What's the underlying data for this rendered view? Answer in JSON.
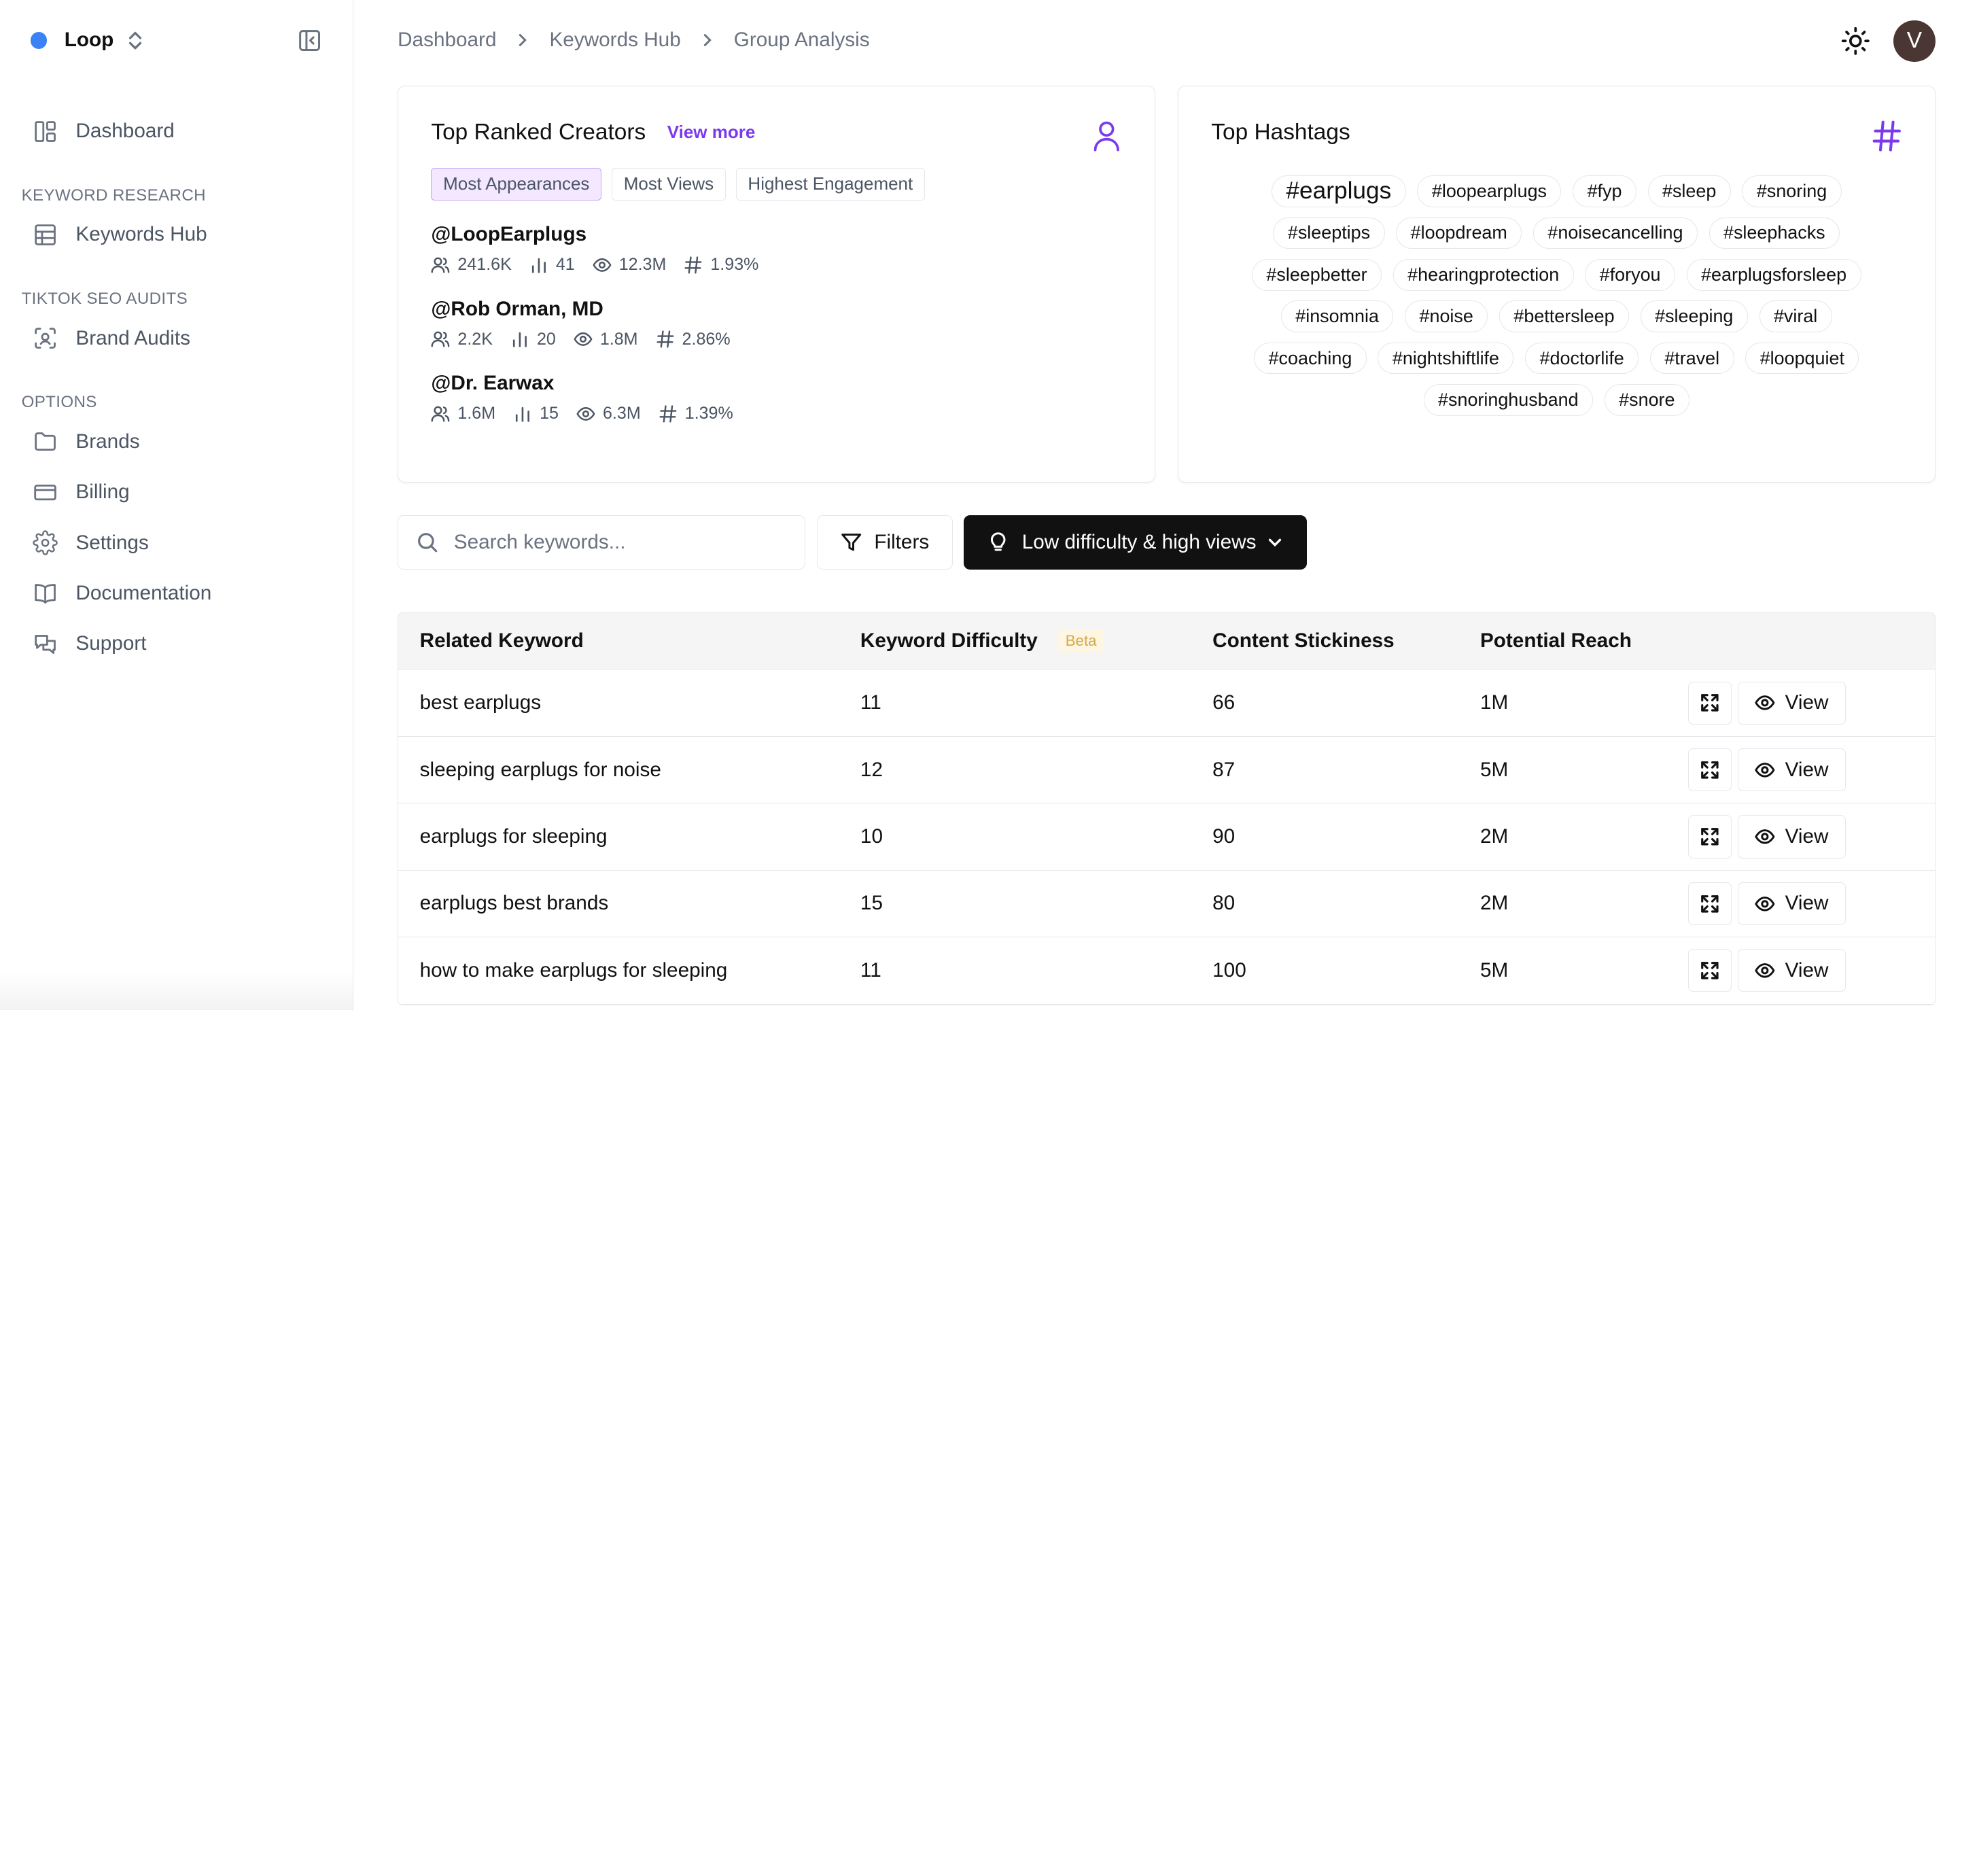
{
  "brand": {
    "name": "Loop",
    "dot_color": "#3b82f6"
  },
  "sidebar": {
    "dashboard": "Dashboard",
    "sections": {
      "keyword_research": "KEYWORD RESEARCH",
      "tiktok_seo_audits": "TIKTOK SEO AUDITS",
      "options": "OPTIONS"
    },
    "items": {
      "keywords_hub": "Keywords Hub",
      "brand_audits": "Brand Audits",
      "brands": "Brands",
      "billing": "Billing",
      "settings": "Settings",
      "documentation": "Documentation",
      "support": "Support"
    }
  },
  "breadcrumb": [
    "Dashboard",
    "Keywords Hub",
    "Group Analysis"
  ],
  "user": {
    "initial": "V"
  },
  "creators_card": {
    "title": "Top Ranked Creators",
    "view_more": "View more",
    "tabs": [
      "Most Appearances",
      "Most Views",
      "Highest Engagement"
    ],
    "active_tab": "Most Appearances",
    "creators": [
      {
        "handle": "@LoopEarplugs",
        "followers": "241.6K",
        "appearances": "41",
        "views": "12.3M",
        "engagement": "1.93%"
      },
      {
        "handle": "@Rob Orman, MD",
        "followers": "2.2K",
        "appearances": "20",
        "views": "1.8M",
        "engagement": "2.86%"
      },
      {
        "handle": "@Dr. Earwax",
        "followers": "1.6M",
        "appearances": "15",
        "views": "6.3M",
        "engagement": "1.39%"
      }
    ]
  },
  "hashtags_card": {
    "title": "Top Hashtags",
    "tags": [
      "#earplugs",
      "#loopearplugs",
      "#fyp",
      "#sleep",
      "#snoring",
      "#sleeptips",
      "#loopdream",
      "#noisecancelling",
      "#sleephacks",
      "#sleepbetter",
      "#hearingprotection",
      "#foryou",
      "#earplugsforsleep",
      "#insomnia",
      "#noise",
      "#bettersleep",
      "#sleeping",
      "#viral",
      "#coaching",
      "#nightshiftlife",
      "#doctorlife",
      "#travel",
      "#loopquiet",
      "#snoringhusband",
      "#snore"
    ]
  },
  "toolbar": {
    "search_placeholder": "Search keywords...",
    "filters_label": "Filters",
    "preset_label": "Low difficulty & high views"
  },
  "table": {
    "headers": {
      "keyword": "Related Keyword",
      "difficulty": "Keyword Difficulty",
      "beta": "Beta",
      "stickiness": "Content Stickiness",
      "reach": "Potential Reach"
    },
    "view_label": "View",
    "rows": [
      {
        "keyword": "best earplugs",
        "difficulty": "11",
        "stickiness": "66",
        "reach": "1M"
      },
      {
        "keyword": "sleeping earplugs for noise",
        "difficulty": "12",
        "stickiness": "87",
        "reach": "5M"
      },
      {
        "keyword": "earplugs for sleeping",
        "difficulty": "10",
        "stickiness": "90",
        "reach": "2M"
      },
      {
        "keyword": "earplugs best brands",
        "difficulty": "15",
        "stickiness": "80",
        "reach": "2M"
      },
      {
        "keyword": "how to make earplugs for sleeping",
        "difficulty": "11",
        "stickiness": "100",
        "reach": "5M"
      }
    ]
  },
  "colors": {
    "accent": "#7c3aed",
    "primary_button": "#111111"
  }
}
